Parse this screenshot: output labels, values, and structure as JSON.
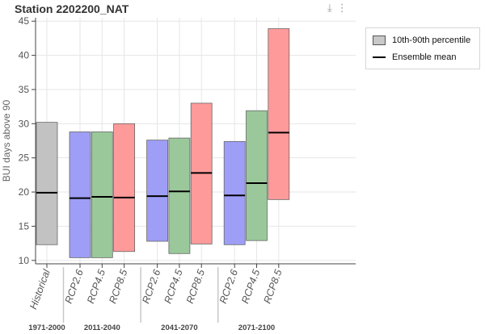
{
  "header": {
    "title": "Station 2202200_NAT"
  },
  "toolbar": {
    "download_icon": "download-icon",
    "more_icon": "more-vertical-icon"
  },
  "legend": {
    "items": [
      {
        "label": "10th-90th percentile",
        "kind": "box",
        "color": "#c8c8c8"
      },
      {
        "label": "Ensemble mean",
        "kind": "line",
        "color": "#000000"
      }
    ]
  },
  "chart_data": {
    "type": "bar",
    "ylabel": "BUI days above 90",
    "ylim": [
      9.5,
      45.5
    ],
    "yticks": [
      10,
      15,
      20,
      25,
      30,
      35,
      40,
      45
    ],
    "grid": true,
    "legend_position": "right",
    "groups": [
      {
        "label": "1971-2000",
        "categories": [
          {
            "label": "Historical",
            "low": 12.3,
            "high": 30.2,
            "mean": 19.9,
            "color": "#c2c2c2"
          }
        ]
      },
      {
        "label": "2011-2040",
        "categories": [
          {
            "label": "RCP2.6",
            "low": 10.4,
            "high": 28.8,
            "mean": 19.1,
            "color": "#9e9ef7"
          },
          {
            "label": "RCP4.5",
            "low": 10.4,
            "high": 28.8,
            "mean": 19.3,
            "color": "#9ac89a"
          },
          {
            "label": "RCP8.5",
            "low": 11.3,
            "high": 30.0,
            "mean": 19.2,
            "color": "#ff9a9a"
          }
        ]
      },
      {
        "label": "2041-2070",
        "categories": [
          {
            "label": "RCP2.6",
            "low": 12.8,
            "high": 27.6,
            "mean": 19.4,
            "color": "#9e9ef7"
          },
          {
            "label": "RCP4.5",
            "low": 11.0,
            "high": 27.9,
            "mean": 20.1,
            "color": "#9ac89a"
          },
          {
            "label": "RCP8.5",
            "low": 12.4,
            "high": 33.0,
            "mean": 22.8,
            "color": "#ff9a9a"
          }
        ]
      },
      {
        "label": "2071-2100",
        "categories": [
          {
            "label": "RCP2.6",
            "low": 12.3,
            "high": 27.4,
            "mean": 19.5,
            "color": "#9e9ef7"
          },
          {
            "label": "RCP4.5",
            "low": 12.9,
            "high": 31.9,
            "mean": 21.3,
            "color": "#9ac89a"
          },
          {
            "label": "RCP8.5",
            "low": 18.9,
            "high": 43.9,
            "mean": 28.7,
            "color": "#ff9a9a"
          }
        ]
      }
    ]
  }
}
